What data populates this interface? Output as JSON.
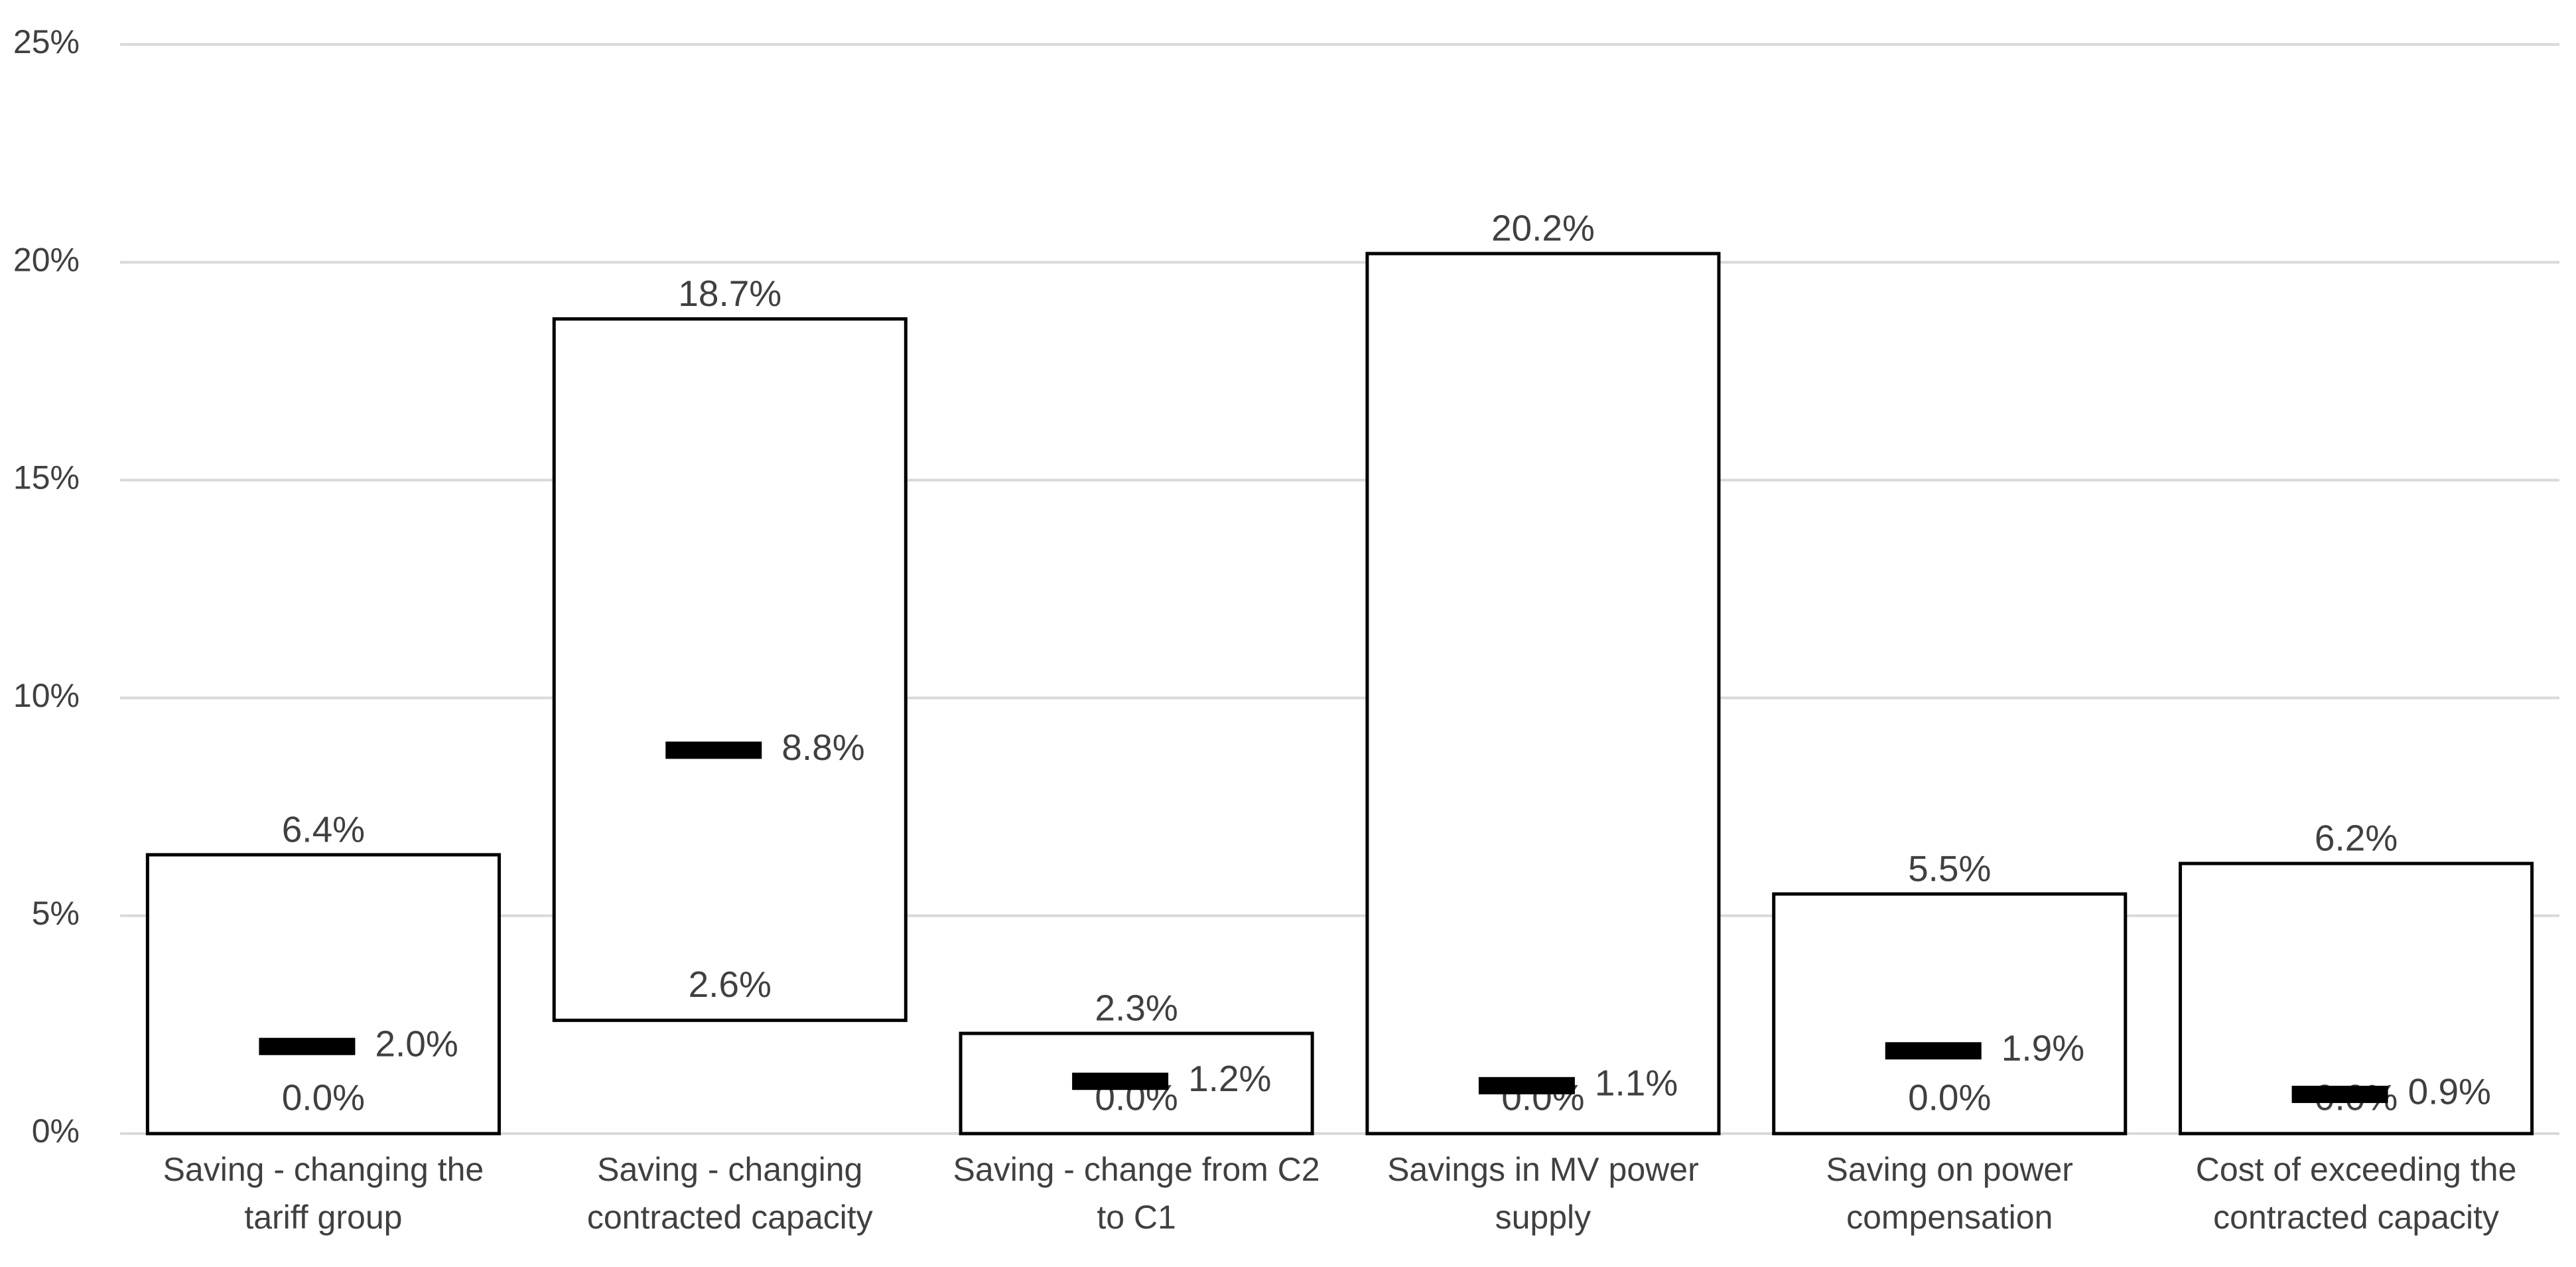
{
  "chart_data": {
    "type": "range",
    "categories": [
      "Saving - changing the tariff group",
      "Saving - changing contracted capacity",
      "Saving - change from C2 to C1",
      "Savings in MV power supply",
      "Saving on power compensation",
      "Cost of exceeding the contracted capacity"
    ],
    "low": {
      "values": [
        0,
        2.6,
        0,
        0,
        0,
        0
      ],
      "value_labels": [
        "0.0%",
        "2.6%",
        "0.0%",
        "0.0%",
        "0.0%",
        "0.0%"
      ]
    },
    "high": {
      "values": [
        6.4,
        18.7,
        2.3,
        20.2,
        5.5,
        6.2
      ],
      "value_labels": [
        "6.4%",
        "18.7%",
        "2.3%",
        "20.2%",
        "5.5%",
        "6.2%"
      ]
    },
    "mid": {
      "values": [
        2.0,
        8.8,
        1.2,
        1.1,
        1.9,
        0.9
      ],
      "value_labels": [
        "2.0%",
        "8.8%",
        "1.2%",
        "1.1%",
        "1.9%",
        "0.9%"
      ]
    },
    "bar_color": "#ffffff",
    "bar_edge": "#000000",
    "marker_color": "#000000",
    "ylim": [
      0,
      25
    ],
    "yticks": [
      {
        "value": 0,
        "label": "0%"
      },
      {
        "value": 5,
        "label": "5%"
      },
      {
        "value": 10,
        "label": "10%"
      },
      {
        "value": 15,
        "label": "15%"
      },
      {
        "value": 20,
        "label": "20%"
      },
      {
        "value": 25,
        "label": "25%"
      }
    ],
    "grid": true
  }
}
